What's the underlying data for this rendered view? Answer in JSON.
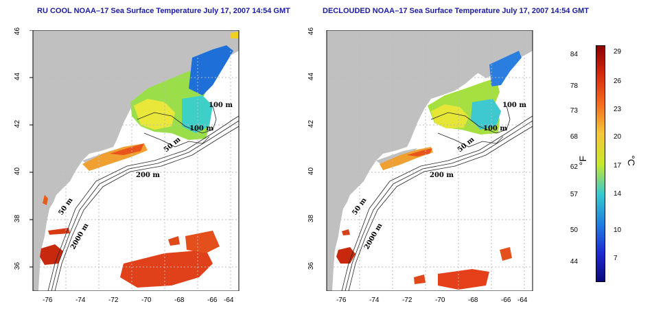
{
  "panels": [
    {
      "title": "RU COOL NOAA–17 Sea Surface Temperature July 17, 2007 14:54 GMT",
      "xticks": [
        "-76",
        "-74",
        "-72",
        "-70",
        "-68",
        "-66",
        "-64"
      ],
      "yticks": [
        "36",
        "38",
        "40",
        "42",
        "44",
        "46"
      ],
      "isobaths": [
        "100 m",
        "100 m",
        "50 m",
        "200 m",
        "50 m",
        "2000 m"
      ]
    },
    {
      "title": "DECLOUDED NOAA–17 Sea Surface Temperature July 17, 2007 14:54 GMT",
      "xticks": [
        "-76",
        "-74",
        "-72",
        "-70",
        "-68",
        "-66",
        "-64"
      ],
      "yticks": [
        "36",
        "38",
        "40",
        "42",
        "44",
        "46"
      ],
      "isobaths": [
        "100 m",
        "100 m",
        "50 m",
        "200 m",
        "50 m",
        "2000 m"
      ]
    }
  ],
  "colorbar": {
    "fahrenheit_label": "°F",
    "celsius_label": "°C",
    "fahrenheit_ticks": [
      "84",
      "78",
      "73",
      "68",
      "62",
      "57",
      "50",
      "44"
    ],
    "celsius_ticks": [
      "29",
      "26",
      "23",
      "20",
      "17",
      "14",
      "10",
      "7"
    ],
    "colors": [
      "#8b0000",
      "#d42a0a",
      "#f46d1e",
      "#f6c53a",
      "#c8e82a",
      "#35c9d0",
      "#1f7ee0",
      "#1e2ad0",
      "#0a0a7a"
    ]
  },
  "colors": {
    "land": "#c0c0c0",
    "ocean": "#ffffff",
    "title": "#1a1aa0",
    "contour": "#222222",
    "grid": "#bbbbbb"
  },
  "map_extent": {
    "lon": [
      -77,
      -63
    ],
    "lat": [
      35,
      46
    ]
  }
}
